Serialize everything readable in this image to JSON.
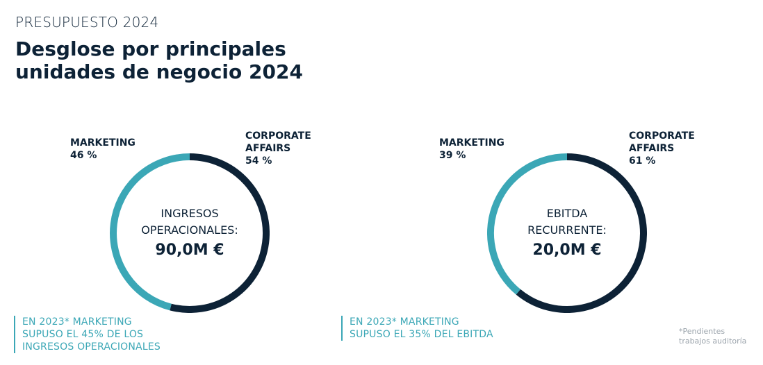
{
  "header": {
    "eyebrow": "PRESUPUESTO 2024",
    "title_line1": "Desglose por principales",
    "title_line2": "unidades de negocio 2024"
  },
  "colors": {
    "marketing": "#3ba7b6",
    "corporate_affairs": "#0d2236"
  },
  "chart_data": [
    {
      "type": "pie",
      "style": "donut",
      "center_label_line1": "INGRESOS",
      "center_label_line2": "OPERACIONALES:",
      "center_value": "90,0M €",
      "slices": [
        {
          "name_line1": "MARKETING",
          "name_line2": "",
          "value": 46,
          "value_label": "46 %"
        },
        {
          "name_line1": "CORPORATE",
          "name_line2": "AFFAIRS",
          "value": 54,
          "value_label": "54 %"
        }
      ],
      "note_lines": [
        "EN 2023* MARKETING",
        "SUPUSO EL 45% DE LOS",
        "INGRESOS OPERACIONALES"
      ]
    },
    {
      "type": "pie",
      "style": "donut",
      "center_label_line1": "EBITDA",
      "center_label_line2": "RECURRENTE:",
      "center_value": "20,0M €",
      "slices": [
        {
          "name_line1": "MARKETING",
          "name_line2": "",
          "value": 39,
          "value_label": "39 %"
        },
        {
          "name_line1": "CORPORATE",
          "name_line2": "AFFAIRS",
          "value": 61,
          "value_label": "61 %"
        }
      ],
      "note_lines": [
        "EN 2023* MARKETING",
        "SUPUSO EL 35% DEL EBITDA"
      ]
    }
  ],
  "footnote": {
    "line1": "*Pendientes",
    "line2": "trabajos auditoría"
  }
}
